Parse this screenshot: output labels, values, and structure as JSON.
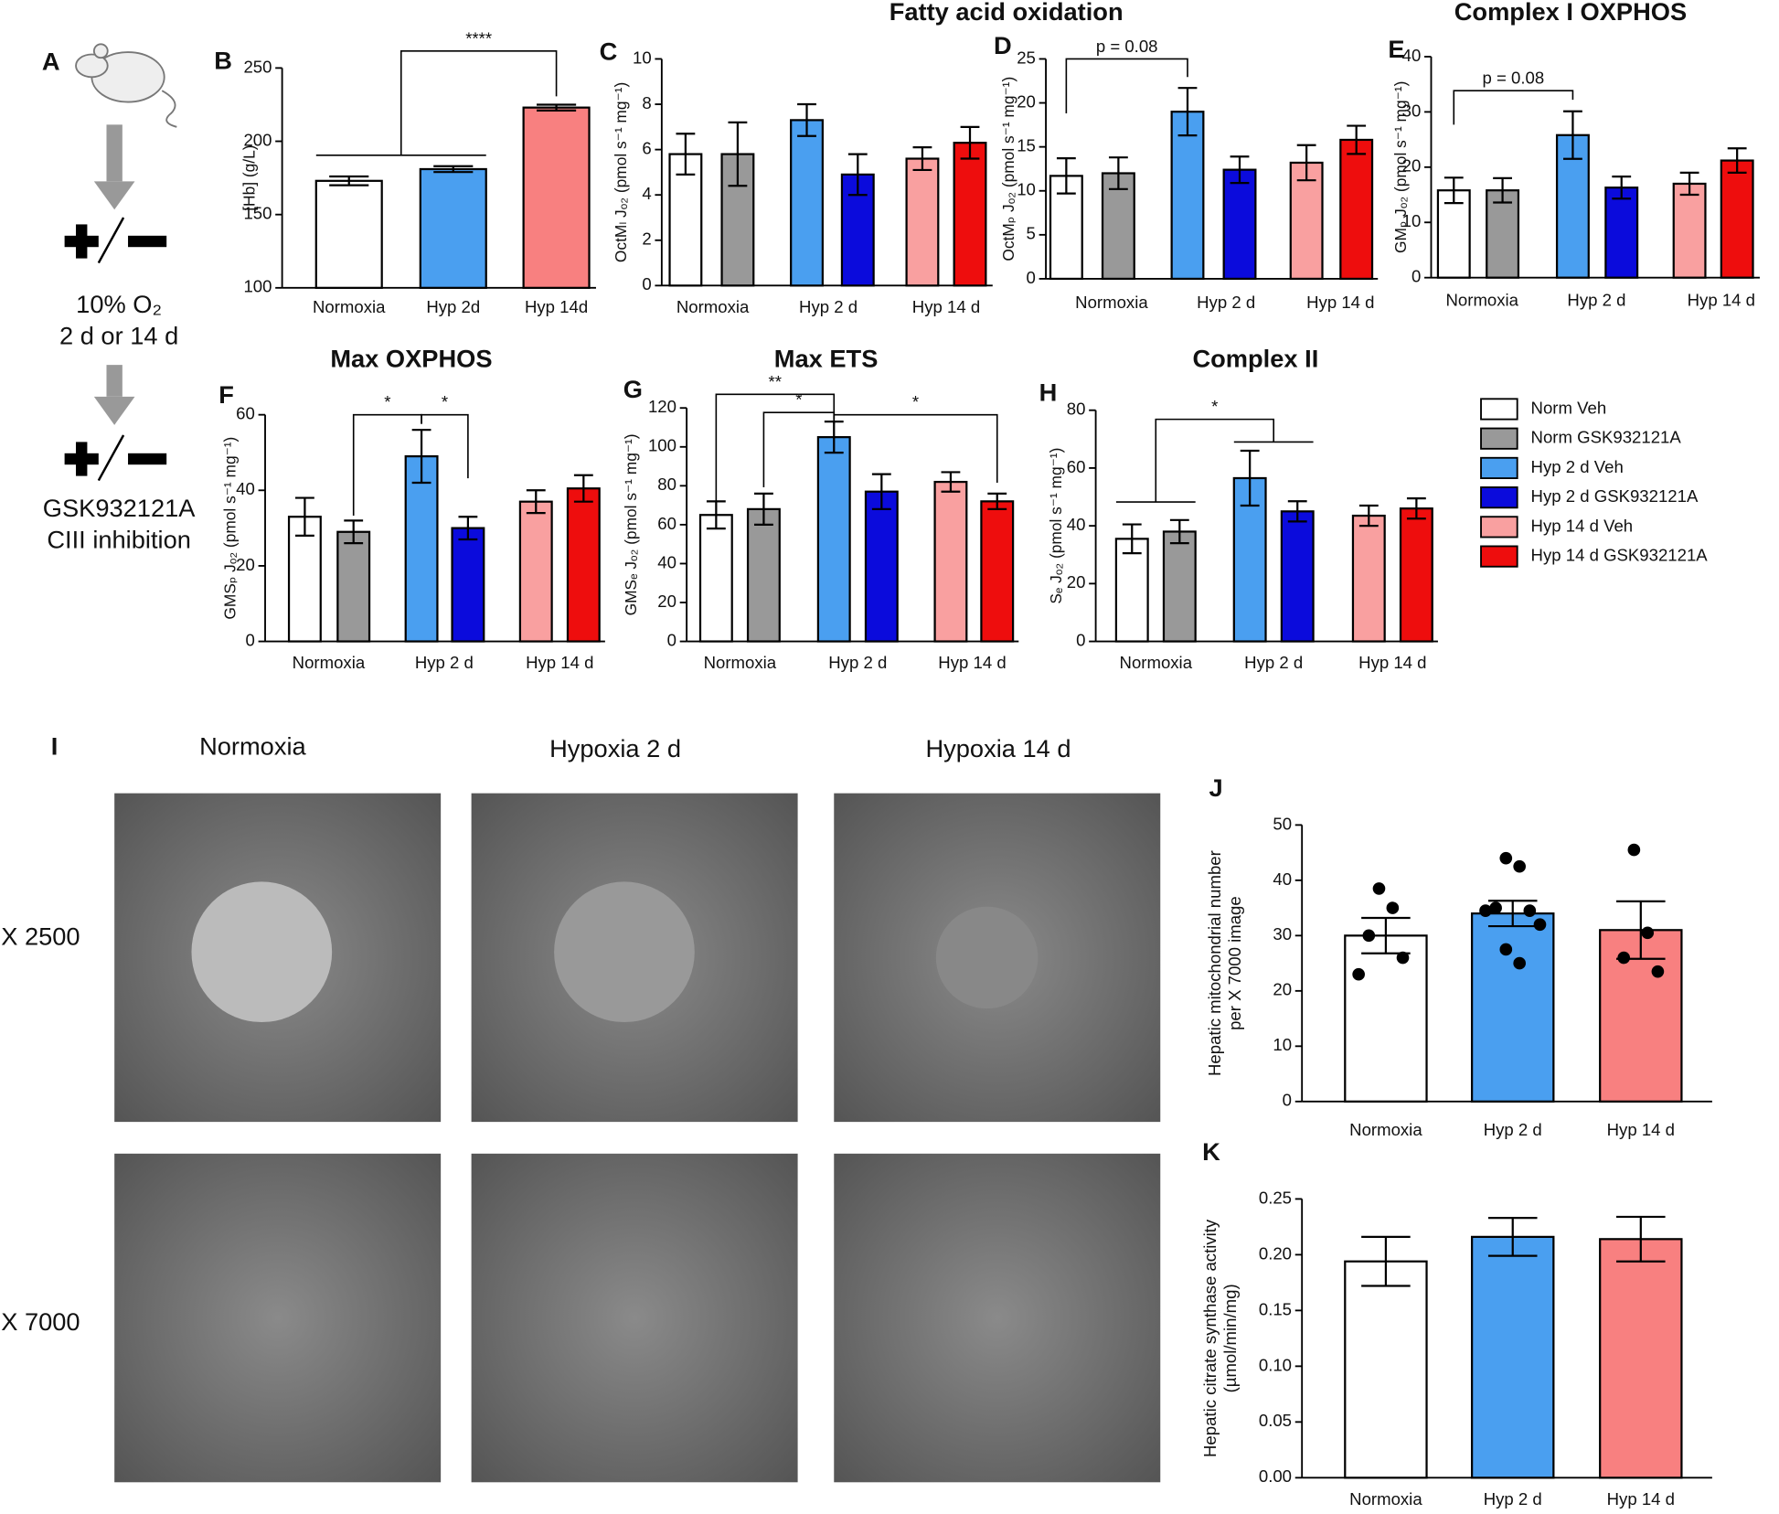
{
  "schematic": {
    "panel": "A",
    "lines": [
      "10% O₂",
      "2 d or 14 d",
      "GSK932121A",
      "CIII inhibition"
    ]
  },
  "legend": [
    {
      "name": "Norm Veh",
      "color": "#ffffff"
    },
    {
      "name": "Norm GSK932121A",
      "color": "#999999"
    },
    {
      "name": "Hyp 2 d Veh",
      "color": "#4a9ff0"
    },
    {
      "name": "Hyp 2 d GSK932121A",
      "color": "#0b0bdc"
    },
    {
      "name": "Hyp 14 d Veh",
      "color": "#f9a0a0"
    },
    {
      "name": "Hyp 14 d GSK932121A",
      "color": "#ee0d0d"
    }
  ],
  "micrographs": {
    "panel": "I",
    "columns": [
      "Normoxia",
      "Hypoxia 2 d",
      "Hypoxia 14 d"
    ],
    "rows": [
      "X 2500",
      "X 7000"
    ]
  },
  "chart_data": [
    {
      "type": "bar",
      "panel": "B",
      "ylabel": [
        "[Hb] (g/L)"
      ],
      "categories": [
        "Normoxia",
        "Hyp 2d",
        "Hyp 14d"
      ],
      "values": [
        173,
        181,
        223
      ],
      "errors": [
        3,
        2,
        2
      ],
      "colors": [
        "#ffffff",
        "#4a9ff0",
        "#f88080"
      ],
      "ylim": [
        100,
        250
      ],
      "yticks": [
        100,
        150,
        200,
        250
      ],
      "annotations": [
        {
          "text": "****",
          "from": [
            0,
            1
          ],
          "to": [
            2
          ]
        }
      ]
    },
    {
      "type": "grouped_bar",
      "panel": "C",
      "title": "Fatty acid oxidation",
      "ylabel": [
        "OctMₗ Jₒ₂ (pmol s⁻¹ mg⁻¹)"
      ],
      "groups": [
        "Normoxia",
        "Hyp 2 d",
        "Hyp 14 d"
      ],
      "values": [
        5.8,
        5.8,
        7.3,
        4.9,
        5.6,
        6.3
      ],
      "errors": [
        0.9,
        1.4,
        0.7,
        0.9,
        0.5,
        0.7
      ],
      "ylim": [
        0,
        10
      ],
      "yticks": [
        0,
        2,
        4,
        6,
        8,
        10
      ],
      "annotations": []
    },
    {
      "type": "grouped_bar",
      "panel": "D",
      "ylabel": [
        "OctMₚ Jₒ₂ (pmol s⁻¹ mg⁻¹)"
      ],
      "groups": [
        "Normoxia",
        "Hyp 2 d",
        "Hyp 14 d"
      ],
      "values": [
        11.7,
        12,
        19,
        12.4,
        13.2,
        15.8
      ],
      "errors": [
        2,
        1.8,
        2.7,
        1.5,
        2,
        1.6
      ],
      "ylim": [
        0,
        25
      ],
      "yticks": [
        0,
        5,
        10,
        15,
        20,
        25
      ],
      "annotations": [
        {
          "text": "p = 0.08",
          "from": [
            0
          ],
          "to": [
            2
          ]
        }
      ]
    },
    {
      "type": "grouped_bar",
      "panel": "E",
      "title": "Complex I OXPHOS",
      "ylabel": [
        "GMₚ Jₒ₂ (pmol s⁻¹ mg⁻¹)"
      ],
      "groups": [
        "Normoxia",
        "Hyp 2 d",
        "Hyp 14 d"
      ],
      "values": [
        15.8,
        15.8,
        25.8,
        16.3,
        17,
        21.2
      ],
      "errors": [
        2.3,
        2.2,
        4.3,
        2,
        2,
        2.2
      ],
      "ylim": [
        0,
        40
      ],
      "yticks": [
        0,
        10,
        20,
        30,
        40
      ],
      "annotations": [
        {
          "text": "p = 0.08",
          "from": [
            0
          ],
          "to": [
            2
          ]
        }
      ]
    },
    {
      "type": "grouped_bar",
      "panel": "F",
      "title": "Max OXPHOS",
      "ylabel": [
        "GMSₚ Jₒ₂ (pmol s⁻¹ mg⁻¹)"
      ],
      "groups": [
        "Normoxia",
        "Hyp 2 d",
        "Hyp 14 d"
      ],
      "values": [
        33,
        29,
        49,
        30,
        37,
        40.5
      ],
      "errors": [
        5,
        3,
        7,
        3,
        3,
        3.5
      ],
      "ylim": [
        0,
        60
      ],
      "yticks": [
        0,
        20,
        40,
        60
      ],
      "annotations": [
        {
          "text": "*",
          "from": [
            1
          ],
          "to": [
            2
          ]
        },
        {
          "text": "*",
          "from": [
            2
          ],
          "to": [
            3
          ]
        }
      ]
    },
    {
      "type": "grouped_bar",
      "panel": "G",
      "title": "Max ETS",
      "ylabel": [
        "GMSₑ Jₒ₂ (pmol s⁻¹ mg⁻¹)"
      ],
      "groups": [
        "Normoxia",
        "Hyp 2 d",
        "Hyp 14 d"
      ],
      "values": [
        65,
        68,
        105,
        77,
        82,
        72
      ],
      "errors": [
        7,
        8,
        8,
        9,
        5,
        4
      ],
      "ylim": [
        0,
        120
      ],
      "yticks": [
        0,
        20,
        40,
        60,
        80,
        100,
        120
      ],
      "annotations": [
        {
          "text": "**",
          "from": [
            0
          ],
          "to": [
            2
          ]
        },
        {
          "text": "*",
          "from": [
            1
          ],
          "to": [
            2
          ]
        },
        {
          "text": "*",
          "from": [
            2
          ],
          "to": [
            5
          ]
        }
      ]
    },
    {
      "type": "grouped_bar",
      "panel": "H",
      "title": "Complex II",
      "ylabel": [
        "Sₑ Jₒ₂ (pmol s⁻¹ mg⁻¹)"
      ],
      "groups": [
        "Normoxia",
        "Hyp 2 d",
        "Hyp 14 d"
      ],
      "values": [
        35.5,
        38,
        56.5,
        45,
        43.5,
        46
      ],
      "errors": [
        5,
        4,
        9.5,
        3.5,
        3.5,
        3.5
      ],
      "ylim": [
        0,
        80
      ],
      "yticks": [
        0,
        20,
        40,
        60,
        80
      ],
      "annotations": [
        {
          "text": "*",
          "from": [
            0,
            1
          ],
          "to": [
            2,
            3
          ]
        }
      ]
    },
    {
      "type": "bar",
      "panel": "J",
      "ylabel": [
        "Hepatic mitochondrial number",
        "per X 7000 image"
      ],
      "categories": [
        "Normoxia",
        "Hyp 2 d",
        "Hyp 14 d"
      ],
      "values": [
        30,
        34,
        31
      ],
      "errors": [
        3.2,
        2.3,
        5.2
      ],
      "colors": [
        "#ffffff",
        "#4a9ff0",
        "#f88080"
      ],
      "points": [
        [
          38.5,
          35,
          30,
          26,
          23
        ],
        [
          44,
          42.5,
          35,
          34.5,
          34.5,
          32,
          27.5,
          25
        ],
        [
          45.5,
          30.5,
          26,
          23.5
        ]
      ],
      "ylim": [
        0,
        50
      ],
      "yticks": [
        0,
        10,
        20,
        30,
        40,
        50
      ],
      "annotations": []
    },
    {
      "type": "bar",
      "panel": "K",
      "ylabel": [
        "Hepatic citrate synthase activity",
        "(µmol/min/mg)"
      ],
      "categories": [
        "Normoxia",
        "Hyp 2 d",
        "Hyp 14 d"
      ],
      "values": [
        0.194,
        0.216,
        0.214
      ],
      "errors": [
        0.022,
        0.017,
        0.02
      ],
      "colors": [
        "#ffffff",
        "#4a9ff0",
        "#f88080"
      ],
      "ylim": [
        0,
        0.25
      ],
      "yticks": [
        {
          "value": 0,
          "label": "0.00"
        },
        {
          "value": 0.05,
          "label": "0.05"
        },
        {
          "value": 0.1,
          "label": "0.10"
        },
        {
          "value": 0.15,
          "label": "0.15"
        },
        {
          "value": 0.2,
          "label": "0.20"
        },
        {
          "value": 0.25,
          "label": "0.25"
        }
      ],
      "annotations": []
    }
  ]
}
